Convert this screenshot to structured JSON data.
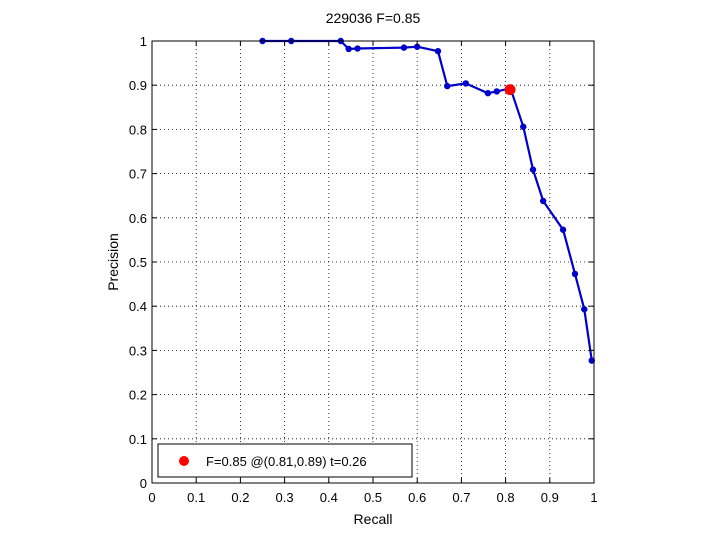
{
  "chart_data": {
    "type": "line",
    "title": "229036 F=0.85",
    "xlabel": "Recall",
    "ylabel": "Precision",
    "xlim": [
      0,
      1
    ],
    "ylim": [
      0,
      1
    ],
    "xticks": [
      0,
      0.1,
      0.2,
      0.3,
      0.4,
      0.5,
      0.6,
      0.7,
      0.8,
      0.9,
      1
    ],
    "yticks": [
      0,
      0.1,
      0.2,
      0.3,
      0.4,
      0.5,
      0.6,
      0.7,
      0.8,
      0.9,
      1
    ],
    "xtick_labels": [
      "0",
      "0.1",
      "0.2",
      "0.3",
      "0.4",
      "0.5",
      "0.6",
      "0.7",
      "0.8",
      "0.9",
      "1"
    ],
    "ytick_labels": [
      "0",
      "0.1",
      "0.2",
      "0.3",
      "0.4",
      "0.5",
      "0.6",
      "0.7",
      "0.8",
      "0.9",
      "1"
    ],
    "grid": true,
    "series": [
      {
        "color": "#0000cc",
        "marker": "dot",
        "points": [
          [
            0.25,
            1.0
          ],
          [
            0.315,
            1.0
          ],
          [
            0.427,
            1.0
          ],
          [
            0.445,
            0.982
          ],
          [
            0.465,
            0.983
          ],
          [
            0.57,
            0.985
          ],
          [
            0.6,
            0.987
          ],
          [
            0.647,
            0.977
          ],
          [
            0.668,
            0.898
          ],
          [
            0.71,
            0.904
          ],
          [
            0.76,
            0.882
          ],
          [
            0.78,
            0.886
          ],
          [
            0.811,
            0.893
          ],
          [
            0.84,
            0.806
          ],
          [
            0.862,
            0.709
          ],
          [
            0.885,
            0.638
          ],
          [
            0.93,
            0.573
          ],
          [
            0.957,
            0.473
          ],
          [
            0.978,
            0.393
          ],
          [
            0.995,
            0.277
          ]
        ]
      }
    ],
    "best_point": {
      "x": 0.81,
      "y": 0.89,
      "color": "#ff0000"
    },
    "legend": {
      "text": "F=0.85 @(0.81,0.89) t=0.26",
      "placement": "bottom-left",
      "marker_color": "#ff0000"
    }
  }
}
